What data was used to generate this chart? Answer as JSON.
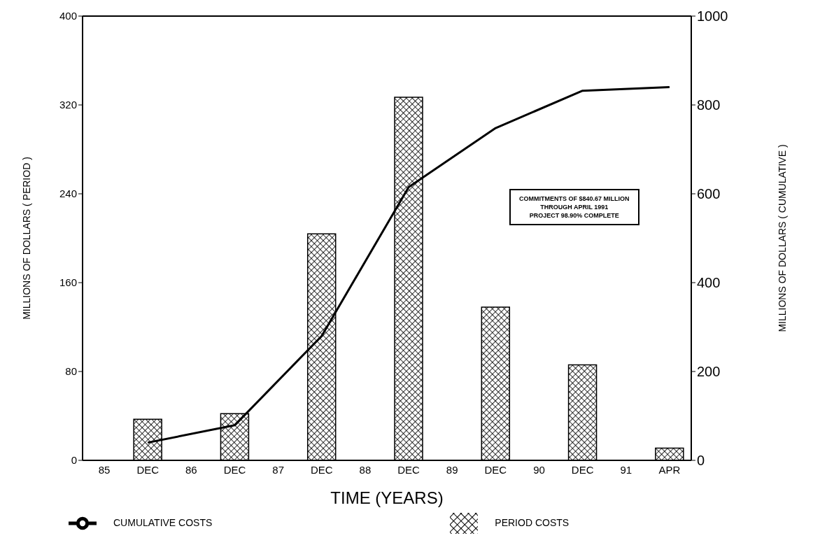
{
  "chart_data": {
    "type": "bar",
    "xlabel": "TIME (YEARS)",
    "ylabel": "MILLIONS OF DOLLARS ( PERIOD )",
    "y2label": "MILLIONS OF DOLLARS ( CUMULATIVE )",
    "categories": [
      "85",
      "DEC",
      "86",
      "DEC",
      "87",
      "DEC",
      "88",
      "DEC",
      "89",
      "DEC",
      "90",
      "DEC",
      "91",
      "APR"
    ],
    "series": [
      {
        "name": "PERIOD COSTS",
        "color": "#000000",
        "values": [
          null,
          37,
          null,
          42,
          null,
          204,
          null,
          327,
          null,
          138,
          null,
          86,
          null,
          11
        ]
      },
      {
        "name": "CUMULATIVE COSTS",
        "type": "line",
        "axis": "y2",
        "color": "#000000",
        "values": [
          null,
          40,
          null,
          79,
          null,
          280,
          null,
          615,
          null,
          748,
          null,
          832,
          null,
          840
        ]
      }
    ],
    "ylim": [
      0,
      400
    ],
    "yticks": [
      0,
      80,
      160,
      240,
      320,
      400
    ],
    "y2lim": [
      0,
      1000
    ],
    "y2ticks": [
      0,
      200,
      400,
      600,
      800,
      1000
    ],
    "grid": false,
    "legend": "bottom",
    "marker": "none",
    "line_style": "solid",
    "annotations": [
      "COMMITMENTS OF $840.67 MILLION\nTHROUGH APRIL 1991\nPROJECT 98.90% COMPLETE"
    ]
  }
}
